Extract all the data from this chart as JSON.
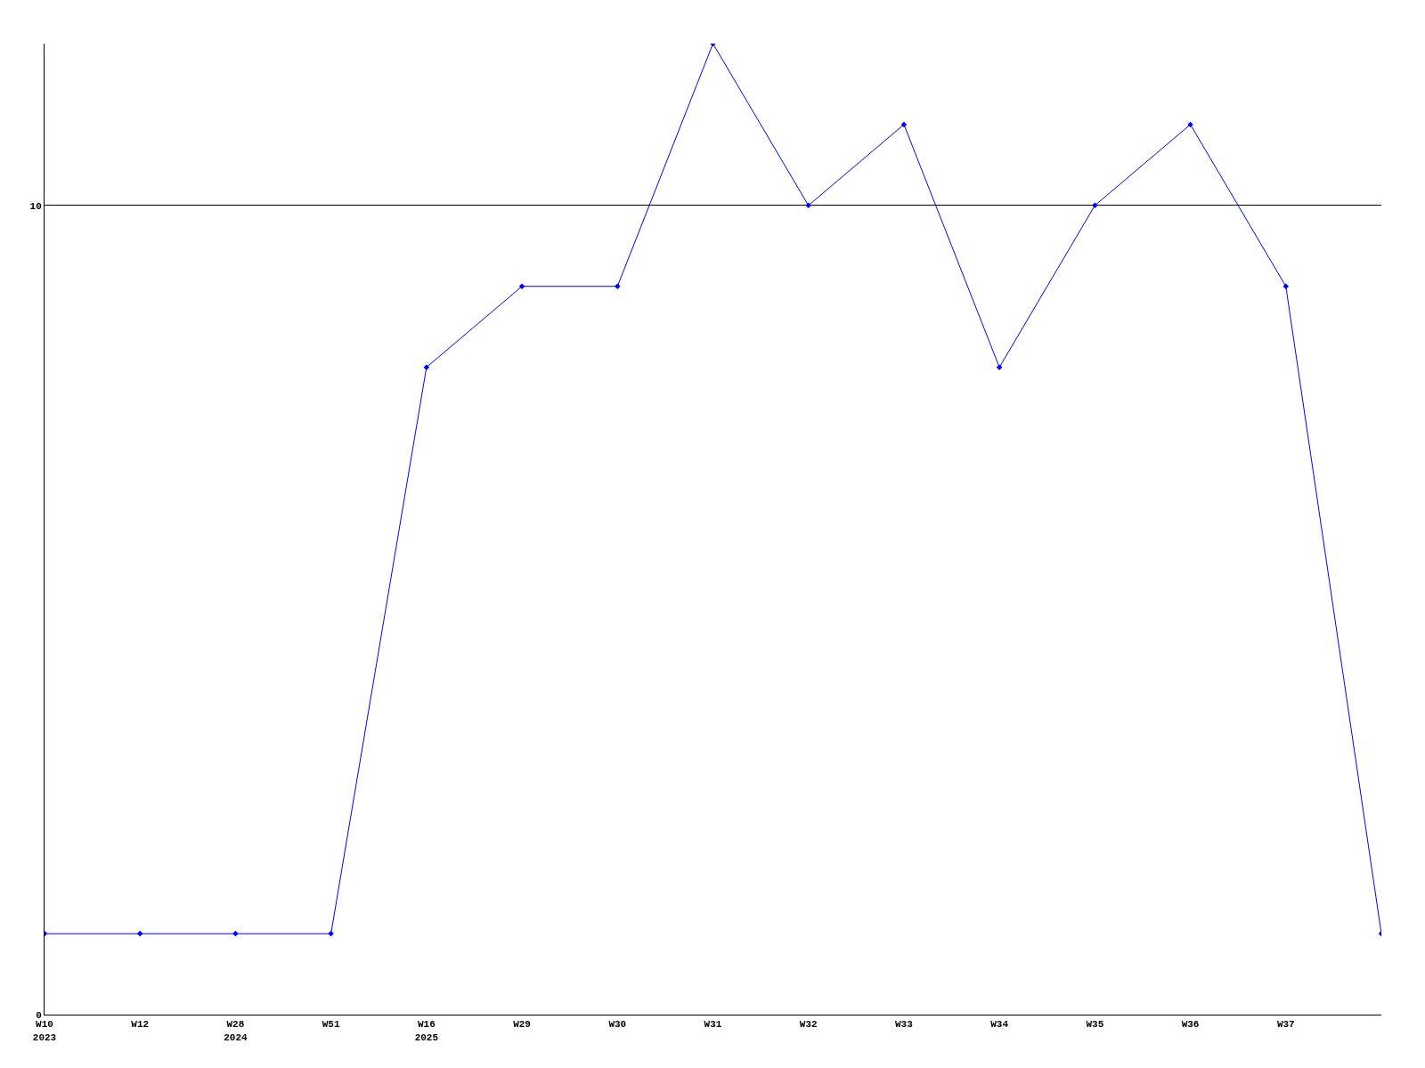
{
  "chart_data": {
    "type": "line",
    "categories": [
      "W10\n2023",
      "W12",
      "W28\n2024",
      "W51",
      "W16\n2025",
      "W29",
      "W30",
      "W31",
      "W32",
      "W33",
      "W34",
      "W35",
      "W36",
      "W37",
      null
    ],
    "series": [
      {
        "color": "#0000ff",
        "values": [
          1,
          1,
          1,
          1,
          8,
          9,
          9,
          12,
          10,
          11,
          8,
          10,
          11,
          9,
          1
        ]
      }
    ],
    "ylim": [
      0,
      12
    ],
    "yticks": [
      0,
      10
    ],
    "grid": "y",
    "marker": "diamond",
    "line_style": "solid",
    "legend": false
  }
}
